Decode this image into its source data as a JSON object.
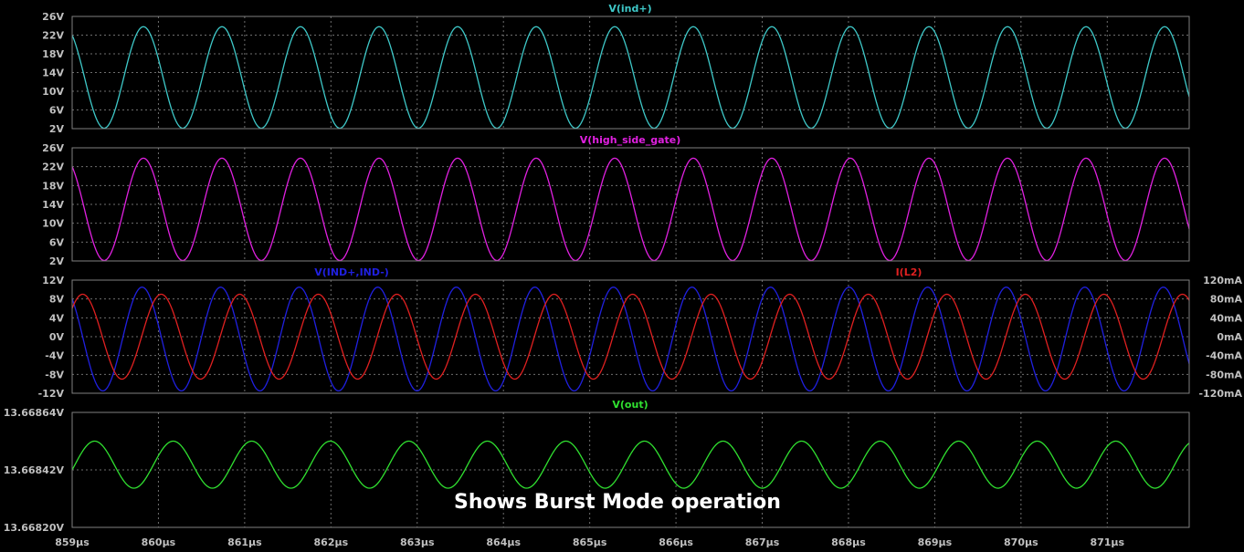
{
  "annotation": "Shows Burst Mode operation",
  "colors": {
    "background": "#000000",
    "frame": "#808080",
    "grid": "#6e6e6e",
    "tick": "#c0c0c0"
  },
  "chart_data": [
    {
      "type": "line",
      "title": "",
      "xlabel": "",
      "ylabel": "",
      "x_ticks": [
        "859µs",
        "860µs",
        "861µs",
        "862µs",
        "863µs",
        "864µs",
        "865µs",
        "866µs",
        "867µs",
        "868µs",
        "869µs",
        "870µs",
        "871µs"
      ],
      "xlim": [
        859,
        871.95
      ],
      "y_ticks": [
        "2V",
        "6V",
        "10V",
        "14V",
        "18V",
        "22V",
        "26V"
      ],
      "ylim": [
        2,
        26
      ],
      "grid": true,
      "series": [
        {
          "name": "V(ind+)",
          "color": "#3ec8c8",
          "waveform": {
            "shape": "sine",
            "period_us": 0.9107,
            "min": 2.1,
            "max": 23.8,
            "start_value": 22.0,
            "start_direction": "falling"
          }
        }
      ]
    },
    {
      "type": "line",
      "title": "",
      "xlabel": "",
      "ylabel": "",
      "x_ticks": [
        "859µs",
        "860µs",
        "861µs",
        "862µs",
        "863µs",
        "864µs",
        "865µs",
        "866µs",
        "867µs",
        "868µs",
        "869µs",
        "870µs",
        "871µs"
      ],
      "xlim": [
        859,
        871.95
      ],
      "y_ticks": [
        "2V",
        "6V",
        "10V",
        "14V",
        "18V",
        "22V",
        "26V"
      ],
      "ylim": [
        2,
        26
      ],
      "grid": true,
      "series": [
        {
          "name": "V(high_side_gate)",
          "color": "#e020e0",
          "waveform": {
            "shape": "sine",
            "period_us": 0.9107,
            "min": 2.1,
            "max": 23.8,
            "start_value": 22.0,
            "start_direction": "falling"
          }
        }
      ]
    },
    {
      "type": "line",
      "title": "",
      "xlabel": "",
      "ylabel": "",
      "x_ticks": [
        "859µs",
        "860µs",
        "861µs",
        "862µs",
        "863µs",
        "864µs",
        "865µs",
        "866µs",
        "867µs",
        "868µs",
        "869µs",
        "870µs",
        "871µs"
      ],
      "xlim": [
        859,
        871.95
      ],
      "y_ticks": [
        "-12V",
        "-8V",
        "-4V",
        "0V",
        "4V",
        "8V",
        "12V"
      ],
      "ylim": [
        -12,
        12
      ],
      "y2_ticks": [
        "-120mA",
        "-80mA",
        "-40mA",
        "0mA",
        "40mA",
        "80mA",
        "120mA"
      ],
      "y2lim": [
        -120,
        120
      ],
      "grid": true,
      "series": [
        {
          "name": "V(IND+,IND-)",
          "color": "#2020e0",
          "axis": "left",
          "waveform": {
            "shape": "sine",
            "period_us": 0.9107,
            "min": -11.5,
            "max": 10.5,
            "start_value": 8.0,
            "start_direction": "falling"
          }
        },
        {
          "name": "I(L2)",
          "color": "#e02020",
          "axis": "right",
          "waveform": {
            "shape": "sine",
            "period_us": 0.9107,
            "min": -90,
            "max": 90,
            "start_value": 60,
            "start_direction": "rising"
          }
        }
      ]
    },
    {
      "type": "line",
      "title": "",
      "xlabel": "",
      "ylabel": "",
      "x_ticks": [
        "859µs",
        "860µs",
        "861µs",
        "862µs",
        "863µs",
        "864µs",
        "865µs",
        "866µs",
        "867µs",
        "868µs",
        "869µs",
        "870µs",
        "871µs"
      ],
      "xlim": [
        859,
        871.95
      ],
      "y_ticks": [
        "13.66820V",
        "13.66842V",
        "13.66864V"
      ],
      "ylim": [
        13.6682,
        13.66864
      ],
      "grid": true,
      "series": [
        {
          "name": "V(out)",
          "color": "#30e030",
          "waveform": {
            "shape": "sine",
            "period_us": 0.9107,
            "min": 13.66835,
            "max": 13.66853,
            "start_value": 13.66842,
            "start_direction": "rising"
          }
        }
      ]
    }
  ]
}
